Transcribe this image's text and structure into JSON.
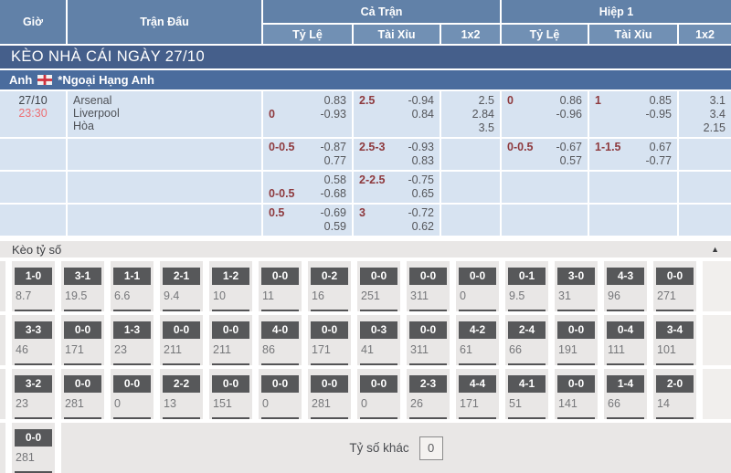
{
  "table_header": {
    "time_col": "Giờ",
    "match_col": "Trận Đấu",
    "full_time_group": "Cả Trận",
    "first_half_group": "Hiệp 1",
    "sub": [
      "Tỷ Lệ",
      "Tài Xỉu",
      "1x2"
    ]
  },
  "banner": {
    "title": "KÈO NHÀ CÁI NGÀY 27/10"
  },
  "league": {
    "country": "Anh",
    "flag_icon": "england-flag-icon",
    "name": "*Ngoại Hạng Anh"
  },
  "odds_rows": [
    {
      "date": "27/10",
      "time": "23:30",
      "teams": [
        "Arsenal",
        "Liverpool",
        "Hòa"
      ],
      "cells": [
        {
          "lines": [
            [
              "",
              "0.83"
            ],
            [
              "0",
              "-0.93"
            ]
          ]
        },
        {
          "lines": [
            [
              "2.5",
              "-0.94"
            ],
            [
              "",
              "0.84"
            ]
          ]
        },
        {
          "stack": [
            "2.5",
            "2.84",
            "3.5"
          ]
        },
        {
          "lines": [
            [
              "0",
              "0.86"
            ],
            [
              "",
              "-0.96"
            ]
          ]
        },
        {
          "lines": [
            [
              "1",
              "0.85"
            ],
            [
              "",
              "-0.95"
            ]
          ]
        },
        {
          "stack": [
            "3.1",
            "3.4",
            "2.15"
          ]
        }
      ]
    },
    {
      "date": "",
      "time": "",
      "teams": [],
      "cells": [
        {
          "lines": [
            [
              "0-0.5",
              "-0.87"
            ],
            [
              "",
              "0.77"
            ]
          ]
        },
        {
          "lines": [
            [
              "2.5-3",
              "-0.93"
            ],
            [
              "",
              "0.83"
            ]
          ]
        },
        {},
        {
          "lines": [
            [
              "0-0.5",
              "-0.67"
            ],
            [
              "",
              "0.57"
            ]
          ]
        },
        {
          "lines": [
            [
              "1-1.5",
              "0.67"
            ],
            [
              "",
              "-0.77"
            ]
          ]
        },
        {}
      ]
    },
    {
      "date": "",
      "time": "",
      "teams": [],
      "cells": [
        {
          "lines": [
            [
              "",
              "0.58"
            ],
            [
              "0-0.5",
              "-0.68"
            ]
          ]
        },
        {
          "lines": [
            [
              "2-2.5",
              "-0.75"
            ],
            [
              "",
              "0.65"
            ]
          ]
        },
        {},
        {},
        {},
        {}
      ]
    },
    {
      "date": "",
      "time": "",
      "teams": [],
      "cells": [
        {
          "lines": [
            [
              "0.5",
              "-0.69"
            ],
            [
              "",
              "0.59"
            ]
          ]
        },
        {
          "lines": [
            [
              "3",
              "-0.72"
            ],
            [
              "",
              "0.62"
            ]
          ]
        },
        {},
        {},
        {},
        {}
      ]
    }
  ],
  "score_section": {
    "title": "Kèo tỷ số",
    "collapse_icon": "▲",
    "rows": [
      [
        {
          "score": "1-0",
          "odds": "8.7"
        },
        {
          "score": "3-1",
          "odds": "19.5"
        },
        {
          "score": "1-1",
          "odds": "6.6"
        },
        {
          "score": "2-1",
          "odds": "9.4"
        },
        {
          "score": "1-2",
          "odds": "10"
        },
        {
          "score": "0-0",
          "odds": "11"
        },
        {
          "score": "0-2",
          "odds": "16"
        },
        {
          "score": "0-0",
          "odds": "251"
        },
        {
          "score": "0-0",
          "odds": "311"
        },
        {
          "score": "0-0",
          "odds": "0"
        },
        {
          "score": "0-1",
          "odds": "9.5"
        },
        {
          "score": "3-0",
          "odds": "31"
        },
        {
          "score": "4-3",
          "odds": "96"
        },
        {
          "score": "0-0",
          "odds": "271"
        }
      ],
      [
        {
          "score": "3-3",
          "odds": "46"
        },
        {
          "score": "0-0",
          "odds": "171"
        },
        {
          "score": "1-3",
          "odds": "23"
        },
        {
          "score": "0-0",
          "odds": "211"
        },
        {
          "score": "0-0",
          "odds": "211"
        },
        {
          "score": "4-0",
          "odds": "86"
        },
        {
          "score": "0-0",
          "odds": "171"
        },
        {
          "score": "0-3",
          "odds": "41"
        },
        {
          "score": "0-0",
          "odds": "311"
        },
        {
          "score": "4-2",
          "odds": "61"
        },
        {
          "score": "2-4",
          "odds": "66"
        },
        {
          "score": "0-0",
          "odds": "191"
        },
        {
          "score": "0-4",
          "odds": "111"
        },
        {
          "score": "3-4",
          "odds": "101"
        }
      ],
      [
        {
          "score": "3-2",
          "odds": "23"
        },
        {
          "score": "0-0",
          "odds": "281"
        },
        {
          "score": "0-0",
          "odds": "0"
        },
        {
          "score": "2-2",
          "odds": "13"
        },
        {
          "score": "0-0",
          "odds": "151"
        },
        {
          "score": "0-0",
          "odds": "0"
        },
        {
          "score": "0-0",
          "odds": "281"
        },
        {
          "score": "0-0",
          "odds": "0"
        },
        {
          "score": "2-3",
          "odds": "26"
        },
        {
          "score": "4-4",
          "odds": "171"
        },
        {
          "score": "4-1",
          "odds": "51"
        },
        {
          "score": "0-0",
          "odds": "141"
        },
        {
          "score": "1-4",
          "odds": "66"
        },
        {
          "score": "2-0",
          "odds": "14"
        }
      ],
      [
        {
          "score": "0-0",
          "odds": "281"
        }
      ]
    ],
    "other_label": "Tỷ số khác",
    "other_value": "0"
  },
  "colors": {
    "header_blue": "#6181a8",
    "subheader_blue": "#7190b4",
    "banner_navy": "#455f8b",
    "league_blue": "#4a6c9d",
    "row_light_blue": "#d7e3f1",
    "handicap_maroon": "#8e3a3e",
    "odds_gray": "#55565a",
    "time_red": "#ed6e73",
    "score_chip_gray": "#57585a",
    "section_gray": "#e9e7e6"
  }
}
